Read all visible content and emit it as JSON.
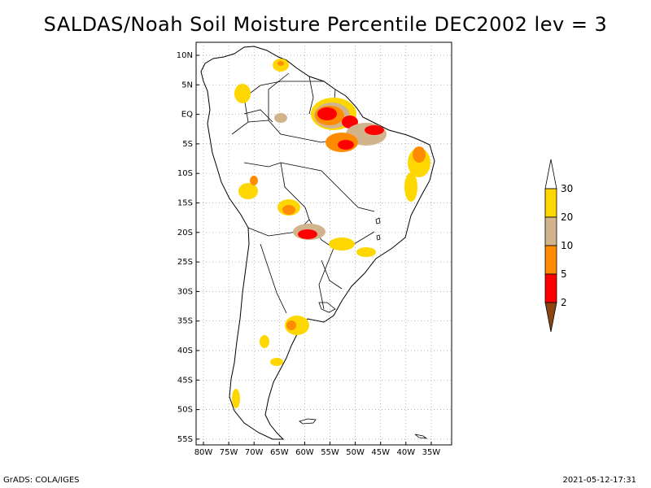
{
  "title": "SALDAS/Noah Soil Moisture Percentile DEC2002 lev = 3",
  "lat_ticks": [
    "10N",
    "5N",
    "EQ",
    "5S",
    "10S",
    "15S",
    "20S",
    "25S",
    "30S",
    "35S",
    "40S",
    "45S",
    "50S",
    "55S"
  ],
  "lon_ticks": [
    "80W",
    "75W",
    "70W",
    "65W",
    "60W",
    "55W",
    "50W",
    "45W",
    "40W",
    "35W"
  ],
  "colorbar": {
    "labels": [
      "2",
      "5",
      "10",
      "20",
      "30"
    ],
    "colors": {
      "below_2": "#8b4513",
      "2_5": "#ff0000",
      "5_10": "#ff8c00",
      "10_20": "#d2b48c",
      "20_30": "#ffd700",
      "above_30": "#ffffff"
    }
  },
  "footer": {
    "left": "GrADS: COLA/IGES",
    "right": "2021-05-12-17:31"
  }
}
